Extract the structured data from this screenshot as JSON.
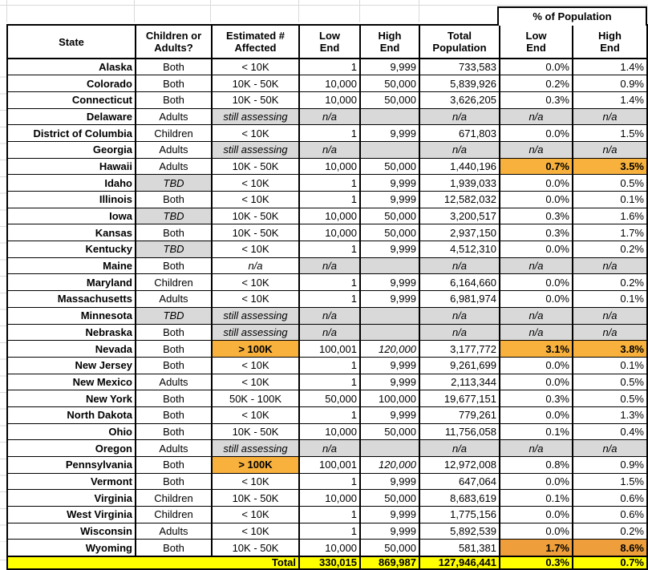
{
  "table": {
    "merged_header": "% of Population",
    "columns": [
      {
        "line1": "State",
        "line2": ""
      },
      {
        "line1": "Children or",
        "line2": "Adults?"
      },
      {
        "line1": "Estimated #",
        "line2": "Affected"
      },
      {
        "line1": "Low",
        "line2": "End"
      },
      {
        "line1": "High",
        "line2": "End"
      },
      {
        "line1": "Total",
        "line2": "Population"
      },
      {
        "line1": "Low",
        "line2": "End"
      },
      {
        "line1": "High",
        "line2": "End"
      }
    ],
    "rows": [
      {
        "state": "Alaska",
        "group": "Both",
        "estimate": "< 10K",
        "low": "1",
        "high": "9,999",
        "population": "733,583",
        "pct_low": "0.0%",
        "pct_high": "1.4%"
      },
      {
        "state": "Colorado",
        "group": "Both",
        "estimate": "10K - 50K",
        "low": "10,000",
        "high": "50,000",
        "population": "5,839,926",
        "pct_low": "0.2%",
        "pct_high": "0.9%"
      },
      {
        "state": "Connecticut",
        "group": "Both",
        "estimate": "10K - 50K",
        "low": "10,000",
        "high": "50,000",
        "population": "3,626,205",
        "pct_low": "0.3%",
        "pct_high": "1.4%"
      },
      {
        "state": "Delaware",
        "group": "Adults",
        "estimate": "still assessing",
        "estimate_gray": true,
        "na": true,
        "low": "n/a",
        "high": "",
        "population": "n/a",
        "pct_low": "n/a",
        "pct_high": "n/a"
      },
      {
        "state": "District of Columbia",
        "group": "Children",
        "estimate": "< 10K",
        "low": "1",
        "high": "9,999",
        "population": "671,803",
        "pct_low": "0.0%",
        "pct_high": "1.5%"
      },
      {
        "state": "Georgia",
        "group": "Adults",
        "estimate": "still assessing",
        "estimate_gray": true,
        "na": true,
        "low": "n/a",
        "high": "",
        "population": "n/a",
        "pct_low": "n/a",
        "pct_high": "n/a"
      },
      {
        "state": "Hawaii",
        "group": "Adults",
        "estimate": "10K - 50K",
        "low": "10,000",
        "high": "50,000",
        "population": "1,440,196",
        "pct_low": "0.7%",
        "pct_high": "3.5%",
        "pct_highlight": "orange"
      },
      {
        "state": "Idaho",
        "group": "TBD",
        "group_gray": true,
        "estimate": "< 10K",
        "low": "1",
        "high": "9,999",
        "population": "1,939,033",
        "pct_low": "0.0%",
        "pct_high": "0.5%"
      },
      {
        "state": "Illinois",
        "group": "Both",
        "estimate": "< 10K",
        "low": "1",
        "high": "9,999",
        "population": "12,582,032",
        "pct_low": "0.0%",
        "pct_high": "0.1%"
      },
      {
        "state": "Iowa",
        "group": "TBD",
        "group_gray": true,
        "estimate": "10K - 50K",
        "low": "10,000",
        "high": "50,000",
        "population": "3,200,517",
        "pct_low": "0.3%",
        "pct_high": "1.6%"
      },
      {
        "state": "Kansas",
        "group": "Both",
        "estimate": "10K - 50K",
        "low": "10,000",
        "high": "50,000",
        "population": "2,937,150",
        "pct_low": "0.3%",
        "pct_high": "1.7%"
      },
      {
        "state": "Kentucky",
        "group": "TBD",
        "group_gray": true,
        "estimate": "< 10K",
        "low": "1",
        "high": "9,999",
        "population": "4,512,310",
        "pct_low": "0.0%",
        "pct_high": "0.2%"
      },
      {
        "state": "Maine",
        "group": "Both",
        "estimate": "n/a",
        "estimate_italic": true,
        "na": true,
        "low": "n/a",
        "high": "",
        "population": "n/a",
        "pct_low": "n/a",
        "pct_high": "n/a"
      },
      {
        "state": "Maryland",
        "group": "Children",
        "estimate": "< 10K",
        "low": "1",
        "high": "9,999",
        "population": "6,164,660",
        "pct_low": "0.0%",
        "pct_high": "0.2%"
      },
      {
        "state": "Massachusetts",
        "group": "Adults",
        "estimate": "< 10K",
        "low": "1",
        "high": "9,999",
        "population": "6,981,974",
        "pct_low": "0.0%",
        "pct_high": "0.1%"
      },
      {
        "state": "Minnesota",
        "group": "TBD",
        "group_gray": true,
        "estimate": "still assessing",
        "estimate_gray": true,
        "na": true,
        "low": "n/a",
        "high": "",
        "population": "n/a",
        "pct_low": "n/a",
        "pct_high": "n/a"
      },
      {
        "state": "Nebraska",
        "group": "Both",
        "estimate": "still assessing",
        "estimate_gray": true,
        "na": true,
        "low": "n/a",
        "high": "",
        "population": "n/a",
        "pct_low": "n/a",
        "pct_high": "n/a"
      },
      {
        "state": "Nevada",
        "group": "Both",
        "estimate": "> 100K",
        "estimate_orange": true,
        "low": "100,001",
        "high": "120,000",
        "high_italic": true,
        "population": "3,177,772",
        "pct_low": "3.1%",
        "pct_high": "3.8%",
        "pct_highlight": "orange"
      },
      {
        "state": "New Jersey",
        "group": "Both",
        "estimate": "< 10K",
        "low": "1",
        "high": "9,999",
        "population": "9,261,699",
        "pct_low": "0.0%",
        "pct_high": "0.1%"
      },
      {
        "state": "New Mexico",
        "group": "Adults",
        "estimate": "< 10K",
        "low": "1",
        "high": "9,999",
        "population": "2,113,344",
        "pct_low": "0.0%",
        "pct_high": "0.5%"
      },
      {
        "state": "New York",
        "group": "Both",
        "estimate": "50K - 100K",
        "low": "50,000",
        "high": "100,000",
        "population": "19,677,151",
        "pct_low": "0.3%",
        "pct_high": "0.5%"
      },
      {
        "state": "North Dakota",
        "group": "Both",
        "estimate": "< 10K",
        "low": "1",
        "high": "9,999",
        "population": "779,261",
        "pct_low": "0.0%",
        "pct_high": "1.3%"
      },
      {
        "state": "Ohio",
        "group": "Both",
        "estimate": "10K - 50K",
        "low": "10,000",
        "high": "50,000",
        "population": "11,756,058",
        "pct_low": "0.1%",
        "pct_high": "0.4%"
      },
      {
        "state": "Oregon",
        "group": "Adults",
        "estimate": "still assessing",
        "estimate_gray": true,
        "na": true,
        "low": "n/a",
        "high": "",
        "population": "n/a",
        "pct_low": "n/a",
        "pct_high": "n/a"
      },
      {
        "state": "Pennsylvania",
        "group": "Both",
        "estimate": "> 100K",
        "estimate_orange": true,
        "low": "100,001",
        "high": "120,000",
        "high_italic": true,
        "population": "12,972,008",
        "pct_low": "0.8%",
        "pct_high": "0.9%"
      },
      {
        "state": "Vermont",
        "group": "Both",
        "estimate": "< 10K",
        "low": "1",
        "high": "9,999",
        "population": "647,064",
        "pct_low": "0.0%",
        "pct_high": "1.5%"
      },
      {
        "state": "Virginia",
        "group": "Children",
        "estimate": "10K - 50K",
        "low": "10,000",
        "high": "50,000",
        "population": "8,683,619",
        "pct_low": "0.1%",
        "pct_high": "0.6%"
      },
      {
        "state": "West Virginia",
        "group": "Children",
        "estimate": "< 10K",
        "low": "1",
        "high": "9,999",
        "population": "1,775,156",
        "pct_low": "0.0%",
        "pct_high": "0.6%"
      },
      {
        "state": "Wisconsin",
        "group": "Adults",
        "estimate": "< 10K",
        "low": "1",
        "high": "9,999",
        "population": "5,892,539",
        "pct_low": "0.0%",
        "pct_high": "0.2%"
      },
      {
        "state": "Wyoming",
        "group": "Both",
        "estimate": "10K - 50K",
        "low": "10,000",
        "high": "50,000",
        "population": "581,381",
        "pct_low": "1.7%",
        "pct_high": "8.6%",
        "pct_highlight": "orange-dark"
      }
    ],
    "total": {
      "label": "Total",
      "low": "330,015",
      "high": "869,987",
      "population": "127,946,441",
      "pct_low": "0.3%",
      "pct_high": "0.7%"
    }
  },
  "colors": {
    "highlight_orange": "#F7B13C",
    "highlight_orange_dark": "#EE9E3A",
    "total_yellow": "#FFFF00",
    "na_gray": "#D9D9D9"
  }
}
